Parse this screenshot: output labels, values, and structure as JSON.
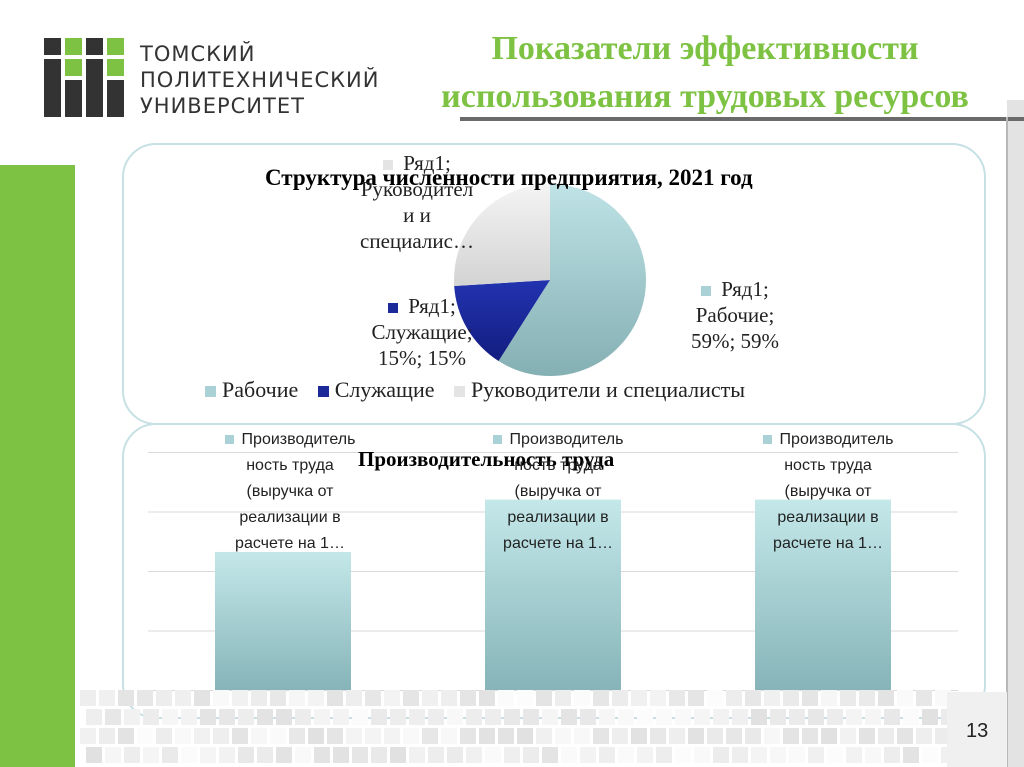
{
  "logo": {
    "lines": [
      "ТОМСКИЙ",
      "ПОЛИТЕХНИЧЕСКИЙ",
      "УНИВЕРСИТЕТ"
    ],
    "color": "#333333"
  },
  "slide": {
    "title_line1": "Показатели эффективности",
    "title_line2": "использования трудовых ресурсов",
    "accent_color": "#7dc242",
    "page_number": "13"
  },
  "chart_data": [
    {
      "type": "pie",
      "title": "Структура численности предприятия, 2021 год",
      "categories": [
        "Рабочие",
        "Служащие",
        "Руководители и специалисты"
      ],
      "values": [
        59,
        15,
        26
      ],
      "colors": [
        "#a9d1d6",
        "#1c2a99",
        "#e4e4e4"
      ],
      "data_labels": [
        {
          "lines": [
            "Ряд1;",
            "Рабочие;",
            "59%; 59%"
          ]
        },
        {
          "lines": [
            "Ряд1;",
            "Служащие;",
            "15%; 15%"
          ]
        },
        {
          "lines": [
            "Ряд1;",
            "Руководител",
            "и и",
            "специалис…"
          ]
        }
      ],
      "legend": "bottom"
    },
    {
      "type": "bar",
      "title": "Производительность труда",
      "categories": [
        "",
        "",
        ""
      ],
      "values": [
        0.58,
        0.8,
        0.8
      ],
      "series_label_lines": [
        "Производитель",
        "ность труда",
        "(выручка от",
        "реализации в",
        "расчете на 1…"
      ],
      "color": "#a9d1d6",
      "grid": true
    }
  ]
}
